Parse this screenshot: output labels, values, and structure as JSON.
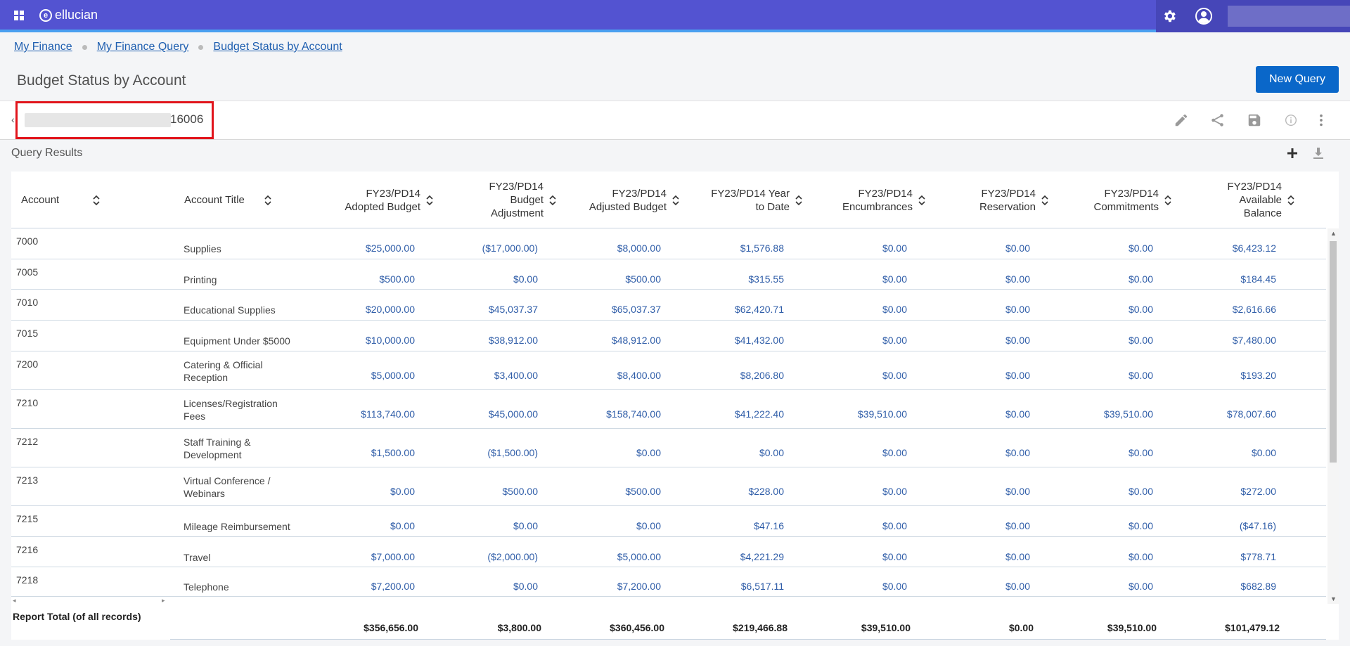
{
  "app": {
    "brand": "ellucian"
  },
  "breadcrumb": [
    "My Finance",
    "My Finance Query",
    "Budget Status by Account"
  ],
  "page": {
    "title": "Budget Status by Account",
    "new_query": "New Query"
  },
  "query": {
    "id_suffix": "16006"
  },
  "results": {
    "label": "Query Results"
  },
  "columns": [
    {
      "label": "Account"
    },
    {
      "label": "Account Title"
    },
    {
      "label": "FY23/PD14 Adopted Budget"
    },
    {
      "label": "FY23/PD14 Budget Adjustment"
    },
    {
      "label": "FY23/PD14 Adjusted Budget"
    },
    {
      "label": "FY23/PD14 Year to Date"
    },
    {
      "label": "FY23/PD14 Encumbrances"
    },
    {
      "label": "FY23/PD14 Reservation"
    },
    {
      "label": "FY23/PD14 Commitments"
    },
    {
      "label": "FY23/PD14 Available Balance"
    }
  ],
  "rows": [
    {
      "account": "7000",
      "title": "Supplies",
      "values": [
        "$25,000.00",
        "($17,000.00)",
        "$8,000.00",
        "$1,576.88",
        "$0.00",
        "$0.00",
        "$0.00",
        "$6,423.12"
      ]
    },
    {
      "account": "7005",
      "title": "Printing",
      "values": [
        "$500.00",
        "$0.00",
        "$500.00",
        "$315.55",
        "$0.00",
        "$0.00",
        "$0.00",
        "$184.45"
      ]
    },
    {
      "account": "7010",
      "title": "Educational Supplies",
      "values": [
        "$20,000.00",
        "$45,037.37",
        "$65,037.37",
        "$62,420.71",
        "$0.00",
        "$0.00",
        "$0.00",
        "$2,616.66"
      ]
    },
    {
      "account": "7015",
      "title": "Equipment Under $5000",
      "values": [
        "$10,000.00",
        "$38,912.00",
        "$48,912.00",
        "$41,432.00",
        "$0.00",
        "$0.00",
        "$0.00",
        "$7,480.00"
      ]
    },
    {
      "account": "7200",
      "title": "Catering & Official Reception",
      "values": [
        "$5,000.00",
        "$3,400.00",
        "$8,400.00",
        "$8,206.80",
        "$0.00",
        "$0.00",
        "$0.00",
        "$193.20"
      ]
    },
    {
      "account": "7210",
      "title": "Licenses/Registration Fees",
      "values": [
        "$113,740.00",
        "$45,000.00",
        "$158,740.00",
        "$41,222.40",
        "$39,510.00",
        "$0.00",
        "$39,510.00",
        "$78,007.60"
      ]
    },
    {
      "account": "7212",
      "title": "Staff Training & Development",
      "values": [
        "$1,500.00",
        "($1,500.00)",
        "$0.00",
        "$0.00",
        "$0.00",
        "$0.00",
        "$0.00",
        "$0.00"
      ]
    },
    {
      "account": "7213",
      "title": "Virtual Conference / Webinars",
      "values": [
        "$0.00",
        "$500.00",
        "$500.00",
        "$228.00",
        "$0.00",
        "$0.00",
        "$0.00",
        "$272.00"
      ]
    },
    {
      "account": "7215",
      "title": "Mileage Reimbursement",
      "values": [
        "$0.00",
        "$0.00",
        "$0.00",
        "$47.16",
        "$0.00",
        "$0.00",
        "$0.00",
        "($47.16)"
      ]
    },
    {
      "account": "7216",
      "title": "Travel",
      "values": [
        "$7,000.00",
        "($2,000.00)",
        "$5,000.00",
        "$4,221.29",
        "$0.00",
        "$0.00",
        "$0.00",
        "$778.71"
      ]
    },
    {
      "account": "7218",
      "title": "Telephone",
      "values": [
        "$7,200.00",
        "$0.00",
        "$7,200.00",
        "$6,517.11",
        "$0.00",
        "$0.00",
        "$0.00",
        "$682.89"
      ]
    }
  ],
  "totals": {
    "label": "Report Total (of all records)",
    "values": [
      "$356,656.00",
      "$3,800.00",
      "$360,456.00",
      "$219,466.88",
      "$39,510.00",
      "$0.00",
      "$39,510.00",
      "$101,479.12"
    ]
  }
}
